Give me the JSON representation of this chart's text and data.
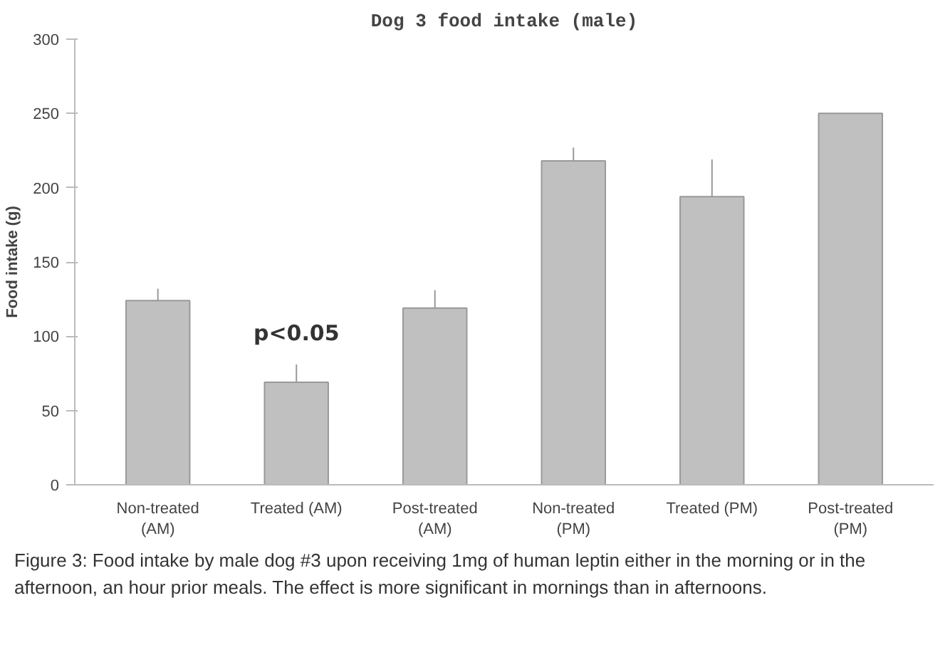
{
  "chart_data": {
    "type": "bar",
    "title": "Dog 3 food intake (male)",
    "ylabel": "Food intake (g)",
    "categories": [
      "Non-treated\n(AM)",
      "Treated (AM)",
      "Post-treated\n(AM)",
      "Non-treated\n(PM)",
      "Treated (PM)",
      "Post-treated\n(PM)"
    ],
    "values": [
      124,
      69,
      119,
      218,
      194,
      250
    ],
    "errors": [
      8,
      12,
      12,
      9,
      25,
      null
    ],
    "color": "#c0c0c0",
    "ylim": [
      0,
      300
    ],
    "yticks": [
      0,
      50,
      100,
      150,
      200,
      250,
      300
    ],
    "grid": false,
    "annotations": [
      "p<0.05",
      "Figure 3: Food intake by male dog #3 upon receiving 1mg of human leptin either in the morning or in the afternoon, an hour prior meals. The effect is more significant in mornings than in afternoons."
    ]
  }
}
